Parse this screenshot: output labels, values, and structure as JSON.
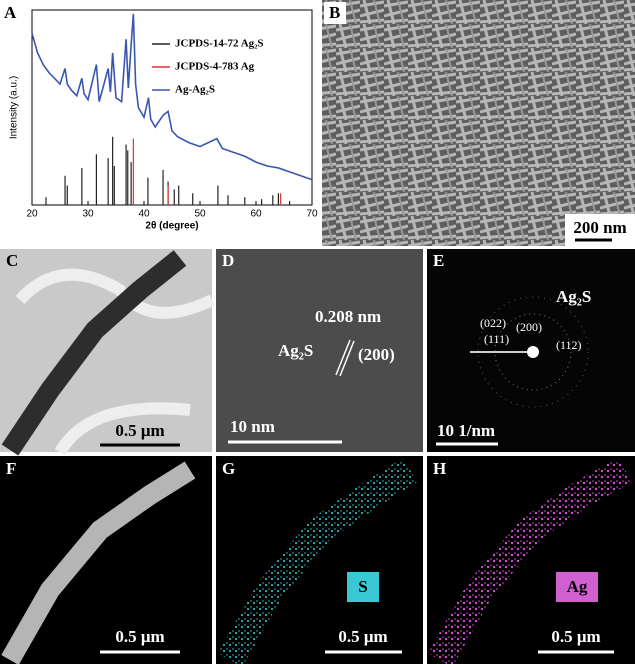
{
  "chart_data": {
    "type": "line",
    "panel_label": "A",
    "xlabel": "2θ (degree)",
    "ylabel": "Intensity (a.u.)",
    "xlim": [
      20,
      70
    ],
    "xticks": [
      20,
      30,
      40,
      50,
      60,
      70
    ],
    "ylim": [
      0,
      100
    ],
    "legend": "top-right",
    "series": [
      {
        "name": "JCPDS-14-72 Ag₂S",
        "color": "#222222",
        "kind": "stem",
        "x": [
          22.5,
          25.9,
          26.3,
          28.9,
          31.5,
          33.6,
          34.4,
          34.7,
          36.8,
          37.1,
          37.7,
          40.7,
          43.4,
          44.3,
          45.4,
          46.2,
          48.7,
          53.2,
          55,
          58,
          61,
          63,
          64,
          66
        ],
        "values": [
          4,
          15,
          10,
          19,
          26,
          24,
          35,
          20,
          31,
          28,
          22,
          14,
          18,
          12,
          8,
          10,
          6,
          10,
          5,
          4,
          3,
          5,
          6,
          2
        ]
      },
      {
        "name": "JCPDS-4-783 Ag",
        "color": "#e0342c",
        "kind": "stem",
        "x": [
          38.1,
          44.3,
          64.4
        ],
        "values": [
          34,
          10,
          6
        ]
      },
      {
        "name": "Ag-Ag₂S",
        "color": "#3a57b0",
        "kind": "line",
        "x": [
          20,
          21,
          22,
          23,
          24,
          25,
          25.9,
          26.3,
          27,
          28,
          28.9,
          29.3,
          30,
          31.5,
          32,
          33.6,
          34,
          34.4,
          35,
          36,
          36.8,
          37.2,
          37.7,
          38.1,
          38.5,
          39,
          40,
          40.8,
          41.2,
          42,
          43.4,
          44.3,
          45,
          46,
          48,
          50,
          53,
          54,
          56,
          58,
          60,
          62,
          64,
          66,
          68,
          70
        ],
        "values": [
          88,
          78,
          72,
          68,
          65,
          62,
          70,
          62,
          59,
          56,
          65,
          57,
          54,
          72,
          53,
          70,
          58,
          78,
          55,
          53,
          85,
          60,
          82,
          98,
          62,
          50,
          45,
          55,
          44,
          40,
          46,
          48,
          38,
          35,
          32,
          30,
          34,
          29,
          27,
          25,
          22,
          20,
          19,
          17,
          15,
          13
        ]
      }
    ]
  },
  "panels": [
    {
      "label": "B",
      "scale_bar": "200 nm",
      "annotations": []
    },
    {
      "label": "C",
      "scale_bar": "0.5 μm",
      "annotations": []
    },
    {
      "label": "D",
      "scale_bar": "10 nm",
      "annotations": [
        "0.208 nm",
        "Ag₂S",
        "(200)"
      ]
    },
    {
      "label": "E",
      "scale_bar": "10 1/nm",
      "annotations": [
        "Ag₂S",
        "(022)",
        "(200)",
        "(111)",
        "(112)"
      ]
    },
    {
      "label": "F",
      "scale_bar": "0.5 μm",
      "annotations": []
    },
    {
      "label": "G",
      "scale_bar": "0.5 μm",
      "annotations": [
        "S"
      ]
    },
    {
      "label": "H",
      "scale_bar": "0.5 μm",
      "annotations": [
        "Ag"
      ]
    }
  ]
}
